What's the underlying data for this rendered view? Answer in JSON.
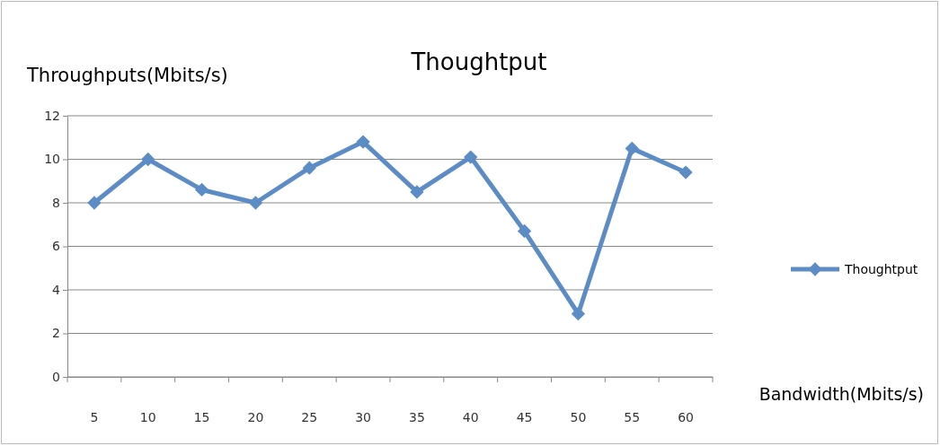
{
  "chart_data": {
    "type": "line",
    "title": "Thoughtput",
    "xlabel": "Bandwidth(Mbits/s)",
    "ylabel": "Throughputs(Mbits/s)",
    "categories": [
      "5",
      "10",
      "15",
      "20",
      "25",
      "30",
      "35",
      "40",
      "45",
      "50",
      "55",
      "60"
    ],
    "series": [
      {
        "name": "Thoughtput",
        "color": "#5b8cc6",
        "values": [
          8.0,
          10.0,
          8.6,
          8.0,
          9.6,
          10.8,
          8.5,
          10.1,
          6.7,
          2.9,
          10.5,
          9.4
        ]
      }
    ],
    "ylim": [
      0,
      12
    ],
    "yticks": [
      0,
      2,
      4,
      6,
      8,
      10,
      12
    ],
    "grid": "y",
    "legend": "right",
    "marker": "diamond",
    "line_style": "solid"
  }
}
